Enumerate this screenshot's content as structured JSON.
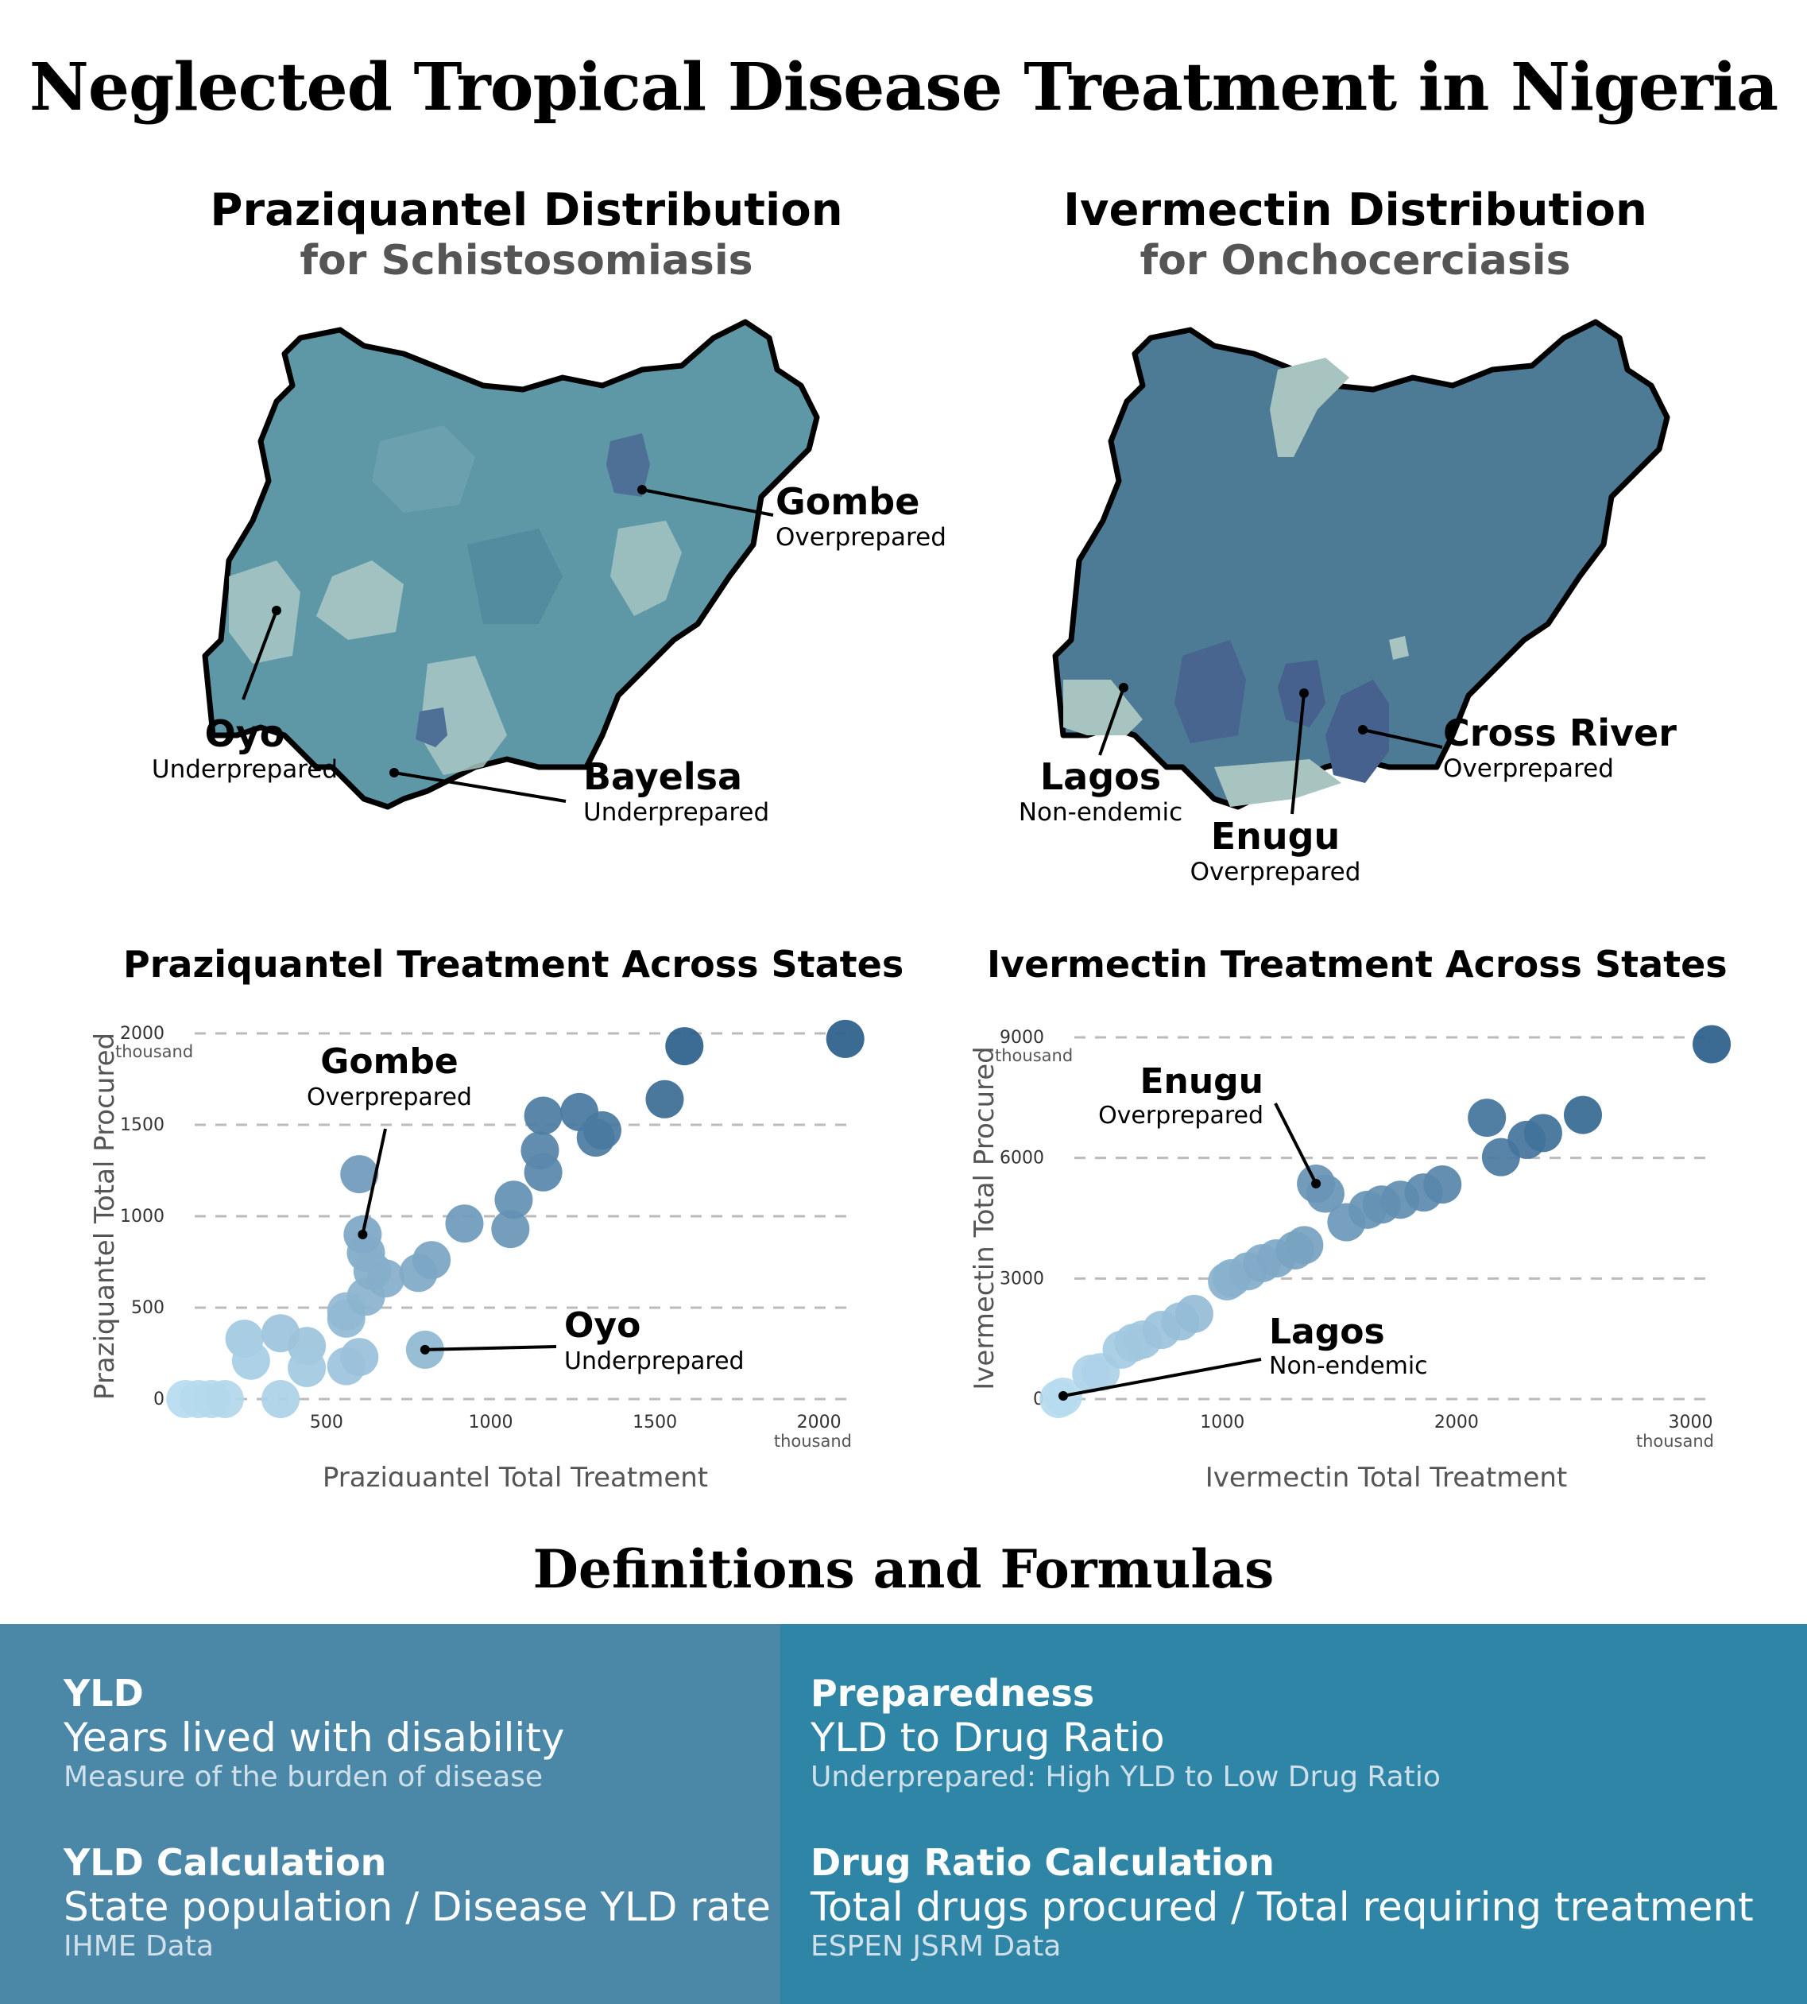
{
  "title": "Neglected Tropical Disease Treatment in Nigeria",
  "maps": [
    {
      "title": "Praziquantel Distribution",
      "subtitle": "for Schistosomiasis",
      "labels": [
        {
          "state": "Gombe",
          "note": "Overprepared"
        },
        {
          "state": "Oyo",
          "note": "Underprepared"
        },
        {
          "state": "Bayelsa",
          "note": "Underprepared"
        }
      ],
      "colors": {
        "base": "#5e98a7",
        "light": "#a9c7c4",
        "dark": "#4e6f96"
      }
    },
    {
      "title": "Ivermectin Distribution",
      "subtitle": "for Onchocerciasis",
      "labels": [
        {
          "state": "Cross River",
          "note": "Overprepared"
        },
        {
          "state": "Lagos",
          "note": "Non-endemic"
        },
        {
          "state": "Enugu",
          "note": "Overprepared"
        }
      ],
      "colors": {
        "base": "#4d7a95",
        "light": "#a7c4c0",
        "dark": "#46618e"
      }
    }
  ],
  "chart_data": [
    {
      "type": "scatter",
      "title": "Praziquantel Treatment Across States",
      "xlabel": "Praziquantel Total Treatment",
      "ylabel": "Praziquantel Total Procured",
      "x_unit": "thousand",
      "y_unit": "thousand",
      "xlim": [
        50,
        2100
      ],
      "ylim": [
        0,
        2000
      ],
      "xticks": [
        "500",
        "1000",
        "1500",
        "2000"
      ],
      "yticks": [
        "0",
        "500",
        "1000",
        "1500",
        "2000"
      ],
      "grid": "horizontal dashed",
      "color_light": "#b8dcf0",
      "color_dark": "#2c5f8a",
      "points": [
        [
          70,
          0
        ],
        [
          110,
          0
        ],
        [
          150,
          0
        ],
        [
          190,
          0
        ],
        [
          360,
          0
        ],
        [
          250,
          330
        ],
        [
          360,
          360
        ],
        [
          270,
          210
        ],
        [
          440,
          290
        ],
        [
          440,
          170
        ],
        [
          560,
          440
        ],
        [
          560,
          480
        ],
        [
          560,
          180
        ],
        [
          600,
          230
        ],
        [
          620,
          560
        ],
        [
          600,
          1230
        ],
        [
          610,
          900
        ],
        [
          620,
          800
        ],
        [
          640,
          700
        ],
        [
          680,
          660
        ],
        [
          780,
          690
        ],
        [
          800,
          270
        ],
        [
          820,
          760
        ],
        [
          920,
          960
        ],
        [
          1060,
          930
        ],
        [
          1070,
          1090
        ],
        [
          1150,
          1360
        ],
        [
          1160,
          1240
        ],
        [
          1160,
          1550
        ],
        [
          1270,
          1570
        ],
        [
          1320,
          1430
        ],
        [
          1340,
          1470
        ],
        [
          1530,
          1640
        ],
        [
          1590,
          1930
        ],
        [
          2080,
          1970
        ]
      ],
      "annotations": [
        {
          "state": "Gombe",
          "note": "Overprepared",
          "x": 610,
          "y": 900
        },
        {
          "state": "Oyo",
          "note": "Underprepared",
          "x": 800,
          "y": 270
        }
      ]
    },
    {
      "type": "scatter",
      "title": "Ivermectin Treatment Across States",
      "xlabel": "Ivermectin Total Treatment",
      "ylabel": "Ivermectin Total Procured",
      "x_unit": "thousand",
      "y_unit": "thousand",
      "xlim": [
        300,
        3100
      ],
      "ylim": [
        0,
        9000
      ],
      "xticks": [
        "1000",
        "2000",
        "3000"
      ],
      "yticks": [
        "0",
        "3000",
        "6000",
        "9000"
      ],
      "grid": "horizontal dashed",
      "color_light": "#b8dcf0",
      "color_dark": "#2c5f8a",
      "points": [
        [
          300,
          0
        ],
        [
          320,
          60
        ],
        [
          440,
          630
        ],
        [
          480,
          670
        ],
        [
          570,
          1230
        ],
        [
          620,
          1400
        ],
        [
          660,
          1480
        ],
        [
          740,
          1720
        ],
        [
          820,
          1930
        ],
        [
          880,
          2120
        ],
        [
          1020,
          2930
        ],
        [
          1040,
          3010
        ],
        [
          1110,
          3180
        ],
        [
          1170,
          3380
        ],
        [
          1230,
          3500
        ],
        [
          1310,
          3700
        ],
        [
          1350,
          3830
        ],
        [
          1400,
          5360
        ],
        [
          1440,
          5110
        ],
        [
          1530,
          4400
        ],
        [
          1620,
          4710
        ],
        [
          1680,
          4840
        ],
        [
          1760,
          4960
        ],
        [
          1860,
          5140
        ],
        [
          1940,
          5340
        ],
        [
          2130,
          7000
        ],
        [
          2190,
          6020
        ],
        [
          2300,
          6450
        ],
        [
          2370,
          6620
        ],
        [
          2540,
          7070
        ],
        [
          3090,
          8830
        ]
      ],
      "annotations": [
        {
          "state": "Enugu",
          "note": "Overprepared",
          "x": 1400,
          "y": 5360
        },
        {
          "state": "Lagos",
          "note": "Non-endemic",
          "x": 300,
          "y": 0
        }
      ]
    }
  ],
  "definitions": {
    "title": "Definitions and Formulas",
    "left": [
      {
        "term": "YLD",
        "main": "Years lived with disability",
        "sub": "Measure of the burden of disease"
      },
      {
        "term": "YLD Calculation",
        "main": "State population / Disease YLD rate",
        "sub": "IHME Data"
      }
    ],
    "right": [
      {
        "term": "Preparedness",
        "main": "YLD to Drug Ratio",
        "sub": "Underprepared: High YLD to Low Drug Ratio"
      },
      {
        "term": "Drug Ratio Calculation",
        "main": "Total drugs procured / Total requiring treatment",
        "sub": "ESPEN JSRM Data"
      }
    ],
    "colors": {
      "left": "#4b88a8",
      "right": "#2e85a6"
    }
  }
}
